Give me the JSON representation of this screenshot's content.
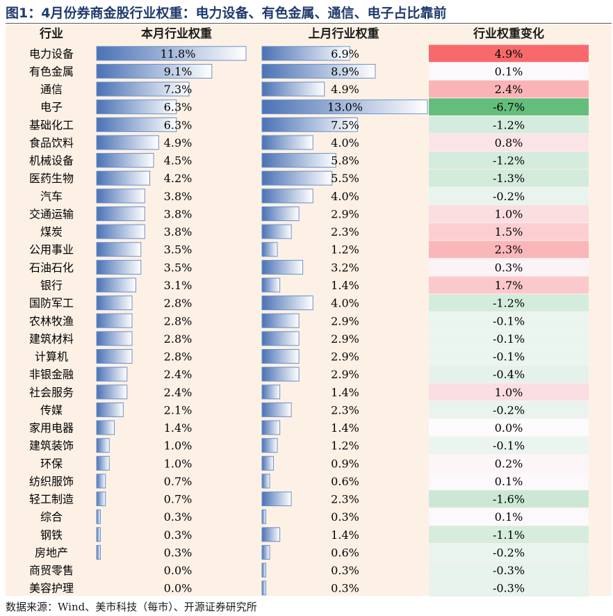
{
  "title": "图1：4月份券商金股行业权重：电力设备、有色金属、通信、电子占比靠前",
  "source": "数据来源：Wind、美市科技（每市）、开源证券研究所",
  "chart_data": {
    "type": "table",
    "columns": [
      "行业",
      "本月行业权重",
      "上月行业权重",
      "行业权重变化"
    ],
    "unit": "%",
    "colors": {
      "bar_dark": "#4a72b5",
      "bar_light": "#ffffff",
      "bar_border": "#6b8fc7",
      "change_positive": "#f8696b",
      "change_negative": "#63be7b",
      "change_neutral": "#fcfcff",
      "panel": "#fdf1e6",
      "title": "#1f3a6e"
    },
    "rows": [
      {
        "industry": "电力设备",
        "current": 11.8,
        "previous": 6.9,
        "change": 4.9
      },
      {
        "industry": "有色金属",
        "current": 9.1,
        "previous": 8.9,
        "change": 0.1
      },
      {
        "industry": "通信",
        "current": 7.3,
        "previous": 4.9,
        "change": 2.4
      },
      {
        "industry": "电子",
        "current": 6.3,
        "previous": 13.0,
        "change": -6.7
      },
      {
        "industry": "基础化工",
        "current": 6.3,
        "previous": 7.5,
        "change": -1.2
      },
      {
        "industry": "食品饮料",
        "current": 4.9,
        "previous": 4.0,
        "change": 0.8
      },
      {
        "industry": "机械设备",
        "current": 4.5,
        "previous": 5.8,
        "change": -1.2
      },
      {
        "industry": "医药生物",
        "current": 4.2,
        "previous": 5.5,
        "change": -1.3
      },
      {
        "industry": "汽车",
        "current": 3.8,
        "previous": 4.0,
        "change": -0.2
      },
      {
        "industry": "交通运输",
        "current": 3.8,
        "previous": 2.9,
        "change": 1.0
      },
      {
        "industry": "煤炭",
        "current": 3.8,
        "previous": 2.3,
        "change": 1.5
      },
      {
        "industry": "公用事业",
        "current": 3.5,
        "previous": 1.2,
        "change": 2.3
      },
      {
        "industry": "石油石化",
        "current": 3.5,
        "previous": 3.2,
        "change": 0.3
      },
      {
        "industry": "银行",
        "current": 3.1,
        "previous": 1.4,
        "change": 1.7
      },
      {
        "industry": "国防军工",
        "current": 2.8,
        "previous": 4.0,
        "change": -1.2
      },
      {
        "industry": "农林牧渔",
        "current": 2.8,
        "previous": 2.9,
        "change": -0.1
      },
      {
        "industry": "建筑材料",
        "current": 2.8,
        "previous": 2.9,
        "change": -0.1
      },
      {
        "industry": "计算机",
        "current": 2.8,
        "previous": 2.9,
        "change": -0.1
      },
      {
        "industry": "非银金融",
        "current": 2.4,
        "previous": 2.9,
        "change": -0.4
      },
      {
        "industry": "社会服务",
        "current": 2.4,
        "previous": 1.4,
        "change": 1.0
      },
      {
        "industry": "传媒",
        "current": 2.1,
        "previous": 2.3,
        "change": -0.2
      },
      {
        "industry": "家用电器",
        "current": 1.4,
        "previous": 1.4,
        "change": 0.0
      },
      {
        "industry": "建筑装饰",
        "current": 1.0,
        "previous": 1.2,
        "change": -0.1
      },
      {
        "industry": "环保",
        "current": 1.0,
        "previous": 0.9,
        "change": 0.2
      },
      {
        "industry": "纺织服饰",
        "current": 0.7,
        "previous": 0.6,
        "change": 0.1
      },
      {
        "industry": "轻工制造",
        "current": 0.7,
        "previous": 2.3,
        "change": -1.6
      },
      {
        "industry": "综合",
        "current": 0.3,
        "previous": 0.3,
        "change": 0.1
      },
      {
        "industry": "钢铁",
        "current": 0.3,
        "previous": 1.4,
        "change": -1.1
      },
      {
        "industry": "房地产",
        "current": 0.3,
        "previous": 0.6,
        "change": -0.2
      },
      {
        "industry": "商贸零售",
        "current": 0.0,
        "previous": 0.3,
        "change": -0.3
      },
      {
        "industry": "美容护理",
        "current": 0.0,
        "previous": 0.3,
        "change": -0.3
      }
    ]
  }
}
